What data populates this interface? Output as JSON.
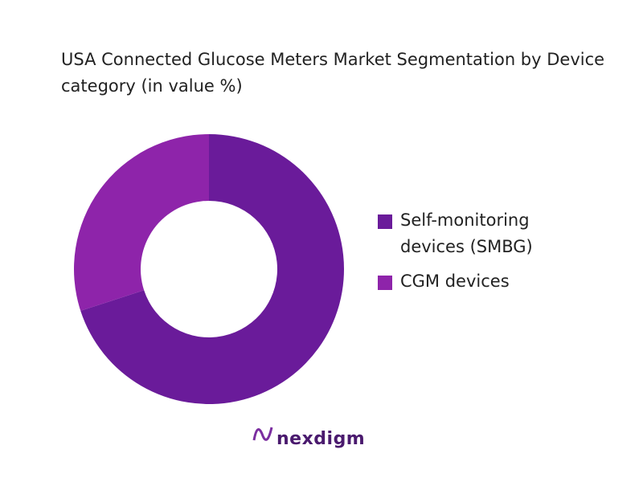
{
  "chart_data": {
    "type": "donut",
    "title": "USA Connected Glucose Meters Market Segmentation by Device category (in value %)",
    "categories": [
      "Self-monitoring devices (SMBG)",
      "CGM devices"
    ],
    "values": [
      70,
      30
    ],
    "colors": [
      "#6a1b9a",
      "#8e24aa"
    ],
    "legend": "right"
  },
  "logo": "nexdigm"
}
